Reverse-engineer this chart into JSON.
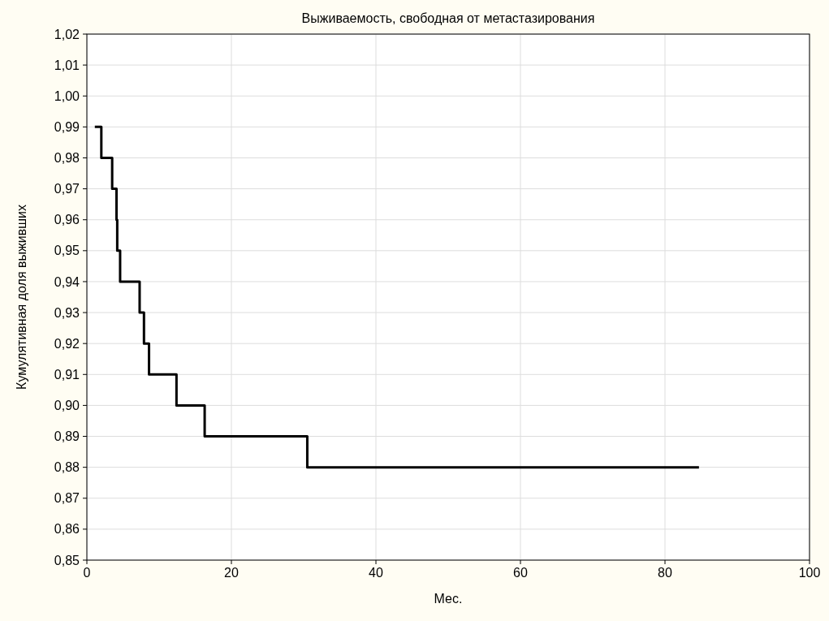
{
  "chart_data": {
    "type": "step",
    "title": "Выживаемость, свободная от метастазирования",
    "xlabel": "Мес.",
    "ylabel": "Кумулятивная доля выживших",
    "x": [
      1.1,
      2.0,
      3.5,
      4.1,
      4.2,
      4.6,
      7.3,
      7.9,
      8.6,
      12.4,
      16.3,
      30.5,
      84.7
    ],
    "series": [
      {
        "color": "#000000",
        "values": [
          0.99,
          0.98,
          0.97,
          0.96,
          0.95,
          0.94,
          0.93,
          0.92,
          0.91,
          0.9,
          0.89,
          0.88,
          0.88
        ]
      }
    ],
    "xlim": [
      0,
      100
    ],
    "xticks": [
      0,
      20,
      40,
      60,
      80,
      100
    ],
    "ylim": [
      0.85,
      1.02
    ],
    "yticks": [
      {
        "value": 0.85,
        "label": "0,85"
      },
      {
        "value": 0.86,
        "label": "0,86"
      },
      {
        "value": 0.87,
        "label": "0,87"
      },
      {
        "value": 0.88,
        "label": "0,88"
      },
      {
        "value": 0.89,
        "label": "0,89"
      },
      {
        "value": 0.9,
        "label": "0,90"
      },
      {
        "value": 0.91,
        "label": "0,91"
      },
      {
        "value": 0.92,
        "label": "0,92"
      },
      {
        "value": 0.93,
        "label": "0,93"
      },
      {
        "value": 0.94,
        "label": "0,94"
      },
      {
        "value": 0.95,
        "label": "0,95"
      },
      {
        "value": 0.96,
        "label": "0,96"
      },
      {
        "value": 0.97,
        "label": "0,97"
      },
      {
        "value": 0.98,
        "label": "0,98"
      },
      {
        "value": 0.99,
        "label": "0,99"
      },
      {
        "value": 1.0,
        "label": "1,00"
      },
      {
        "value": 1.01,
        "label": "1,01"
      },
      {
        "value": 1.02,
        "label": "1,02"
      }
    ],
    "grid": true,
    "line_style": "solid",
    "marker": "none"
  }
}
